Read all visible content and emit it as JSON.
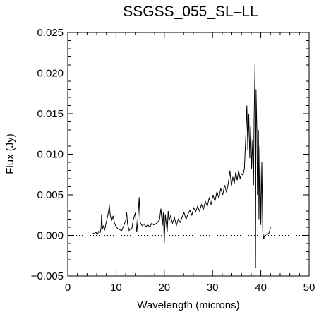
{
  "chart_data": {
    "type": "line",
    "title": "SSGSS_055_SL–LL",
    "xlabel": "Wavelength (microns)",
    "ylabel": "Flux (Jy)",
    "xlim": [
      0,
      50
    ],
    "ylim": [
      -0.005,
      0.025
    ],
    "x_ticks": [
      0,
      10,
      20,
      30,
      40,
      50
    ],
    "y_ticks": [
      -0.005,
      0.0,
      0.005,
      0.01,
      0.015,
      0.02,
      0.025
    ],
    "x_tick_labels": [
      "0",
      "10",
      "20",
      "30",
      "40",
      "50"
    ],
    "y_tick_labels": [
      "−0.005",
      "0.000",
      "0.005",
      "0.010",
      "0.015",
      "0.020",
      "0.025"
    ],
    "zero_line": {
      "y": 0,
      "style": "dotted"
    },
    "grid": false,
    "legend": "none",
    "series": [
      {
        "color": "#000000",
        "points": [
          [
            5.2,
            0.0003
          ],
          [
            5.5,
            0.0002
          ],
          [
            5.8,
            0.0004
          ],
          [
            6.1,
            0.0001
          ],
          [
            6.4,
            0.0005
          ],
          [
            6.7,
            0.0003
          ],
          [
            6.9,
            0.0009
          ],
          [
            7.0,
            0.0026
          ],
          [
            7.2,
            0.0008
          ],
          [
            7.4,
            0.0012
          ],
          [
            7.6,
            0.0006
          ],
          [
            7.9,
            0.0014
          ],
          [
            8.2,
            0.0022
          ],
          [
            8.5,
            0.0031
          ],
          [
            8.6,
            0.0038
          ],
          [
            8.8,
            0.0025
          ],
          [
            9.1,
            0.0018
          ],
          [
            9.4,
            0.0024
          ],
          [
            9.7,
            0.0015
          ],
          [
            10.0,
            0.0011
          ],
          [
            10.4,
            0.0008
          ],
          [
            10.8,
            0.0007
          ],
          [
            11.2,
            0.0006
          ],
          [
            11.6,
            0.0012
          ],
          [
            12.0,
            0.0018
          ],
          [
            12.2,
            0.0029
          ],
          [
            12.4,
            0.0014
          ],
          [
            12.7,
            0.0006
          ],
          [
            13.0,
            0.0008
          ],
          [
            13.3,
            0.0009
          ],
          [
            13.6,
            0.002
          ],
          [
            14.0,
            0.0028
          ],
          [
            14.3,
            0.0004
          ],
          [
            14.5,
            0.0018
          ],
          [
            14.8,
            0.0047
          ],
          [
            15.0,
            0.0016
          ],
          [
            15.4,
            0.0012
          ],
          [
            15.8,
            0.0014
          ],
          [
            16.2,
            0.0011
          ],
          [
            16.6,
            0.0013
          ],
          [
            17.0,
            0.001
          ],
          [
            17.4,
            0.0015
          ],
          [
            17.8,
            0.0013
          ],
          [
            18.2,
            0.0014
          ],
          [
            18.6,
            0.0016
          ],
          [
            19.0,
            0.0019
          ],
          [
            19.3,
            0.0033
          ],
          [
            19.6,
            0.0012
          ],
          [
            19.8,
            0.0028
          ],
          [
            20.0,
            -0.0009
          ],
          [
            20.2,
            0.0026
          ],
          [
            20.4,
            0.0016
          ],
          [
            20.6,
            0.0004
          ],
          [
            20.8,
            0.003
          ],
          [
            21.0,
            0.0018
          ],
          [
            21.3,
            0.0024
          ],
          [
            21.7,
            0.0015
          ],
          [
            22.1,
            0.0022
          ],
          [
            22.5,
            0.0012
          ],
          [
            22.9,
            0.002
          ],
          [
            23.3,
            0.0016
          ],
          [
            23.7,
            0.0023
          ],
          [
            24.1,
            0.0028
          ],
          [
            24.5,
            0.002
          ],
          [
            24.9,
            0.0026
          ],
          [
            25.3,
            0.0031
          ],
          [
            25.7,
            0.0025
          ],
          [
            26.1,
            0.0034
          ],
          [
            26.5,
            0.0029
          ],
          [
            26.9,
            0.0036
          ],
          [
            27.3,
            0.003
          ],
          [
            27.7,
            0.0038
          ],
          [
            28.1,
            0.0032
          ],
          [
            28.5,
            0.0042
          ],
          [
            28.9,
            0.0036
          ],
          [
            29.3,
            0.0046
          ],
          [
            29.7,
            0.0038
          ],
          [
            30.1,
            0.005
          ],
          [
            30.5,
            0.0042
          ],
          [
            30.9,
            0.0054
          ],
          [
            31.3,
            0.0046
          ],
          [
            31.7,
            0.0058
          ],
          [
            32.1,
            0.005
          ],
          [
            32.5,
            0.0062
          ],
          [
            32.9,
            0.0053
          ],
          [
            33.3,
            0.0066
          ],
          [
            33.6,
            0.008
          ],
          [
            33.9,
            0.0061
          ],
          [
            34.2,
            0.0072
          ],
          [
            34.5,
            0.0064
          ],
          [
            34.8,
            0.0078
          ],
          [
            35.1,
            0.0068
          ],
          [
            35.4,
            0.008
          ],
          [
            35.7,
            0.007
          ],
          [
            36.0,
            0.0076
          ],
          [
            36.3,
            0.0074
          ],
          [
            36.6,
            0.0082
          ],
          [
            36.9,
            0.0125
          ],
          [
            37.1,
            0.016
          ],
          [
            37.3,
            0.0105
          ],
          [
            37.5,
            0.015
          ],
          [
            37.7,
            0.0095
          ],
          [
            37.9,
            0.0135
          ],
          [
            38.1,
            0.0082
          ],
          [
            38.3,
            0.0118
          ],
          [
            38.5,
            0.0062
          ],
          [
            38.6,
            0.014
          ],
          [
            38.8,
            0.0212
          ],
          [
            38.9,
            -0.004
          ],
          [
            39.0,
            0.018
          ],
          [
            39.2,
            0.0125
          ],
          [
            39.3,
            0.005
          ],
          [
            39.5,
            0.013
          ],
          [
            39.6,
            0.002
          ],
          [
            39.8,
            0.011
          ],
          [
            40.0,
            0.0013
          ],
          [
            40.2,
            0.009
          ],
          [
            40.4,
            0.0005
          ],
          [
            40.6,
            -0.0004
          ],
          [
            40.9,
            0.0002
          ],
          [
            41.3,
            0.0001
          ],
          [
            41.7,
            0.0003
          ],
          [
            42.0,
            0.001
          ]
        ]
      }
    ]
  }
}
